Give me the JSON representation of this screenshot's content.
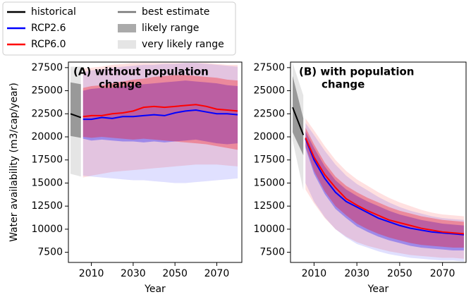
{
  "legend": {
    "series": [
      {
        "name": "historical",
        "color": "#000000"
      },
      {
        "name": "RCP2.6",
        "color": "#0000ff"
      },
      {
        "name": "RCP6.0",
        "color": "#ff0000"
      }
    ],
    "estimate": {
      "name": "best estimate",
      "color": "#777777"
    },
    "ranges": [
      {
        "name": "likely range",
        "color": "#aaaaaa"
      },
      {
        "name": "very likely range",
        "color": "#e5e5e5"
      }
    ]
  },
  "chart_data": [
    {
      "type": "line",
      "title_lines": [
        "(A) without population",
        "change"
      ],
      "xlabel": "Year",
      "ylabel": "Water availability (m3/cap/year)",
      "xlim": [
        1999,
        2082
      ],
      "ylim": [
        6400,
        28100
      ],
      "xticks": [
        2010,
        2030,
        2050,
        2070
      ],
      "yticks": [
        7500,
        10000,
        12500,
        15000,
        17500,
        20000,
        22500,
        25000,
        27500
      ],
      "series": [
        {
          "color": "#000000",
          "x": [
            2000,
            2005
          ],
          "values": [
            22500,
            22100
          ],
          "likely_lower": [
            20100,
            19900
          ],
          "likely_upper": [
            25900,
            25700
          ],
          "very_likely_lower": [
            16000,
            15700
          ],
          "very_likely_upper": [
            27600,
            27600
          ]
        },
        {
          "color": "#0000ff",
          "x": [
            2006,
            2010,
            2015,
            2020,
            2025,
            2030,
            2035,
            2040,
            2045,
            2050,
            2055,
            2060,
            2065,
            2070,
            2075,
            2080
          ],
          "values": [
            21900,
            21900,
            22100,
            22000,
            22200,
            22200,
            22300,
            22400,
            22300,
            22600,
            22800,
            22900,
            22700,
            22500,
            22500,
            22400
          ],
          "likely_lower": [
            19800,
            19600,
            19700,
            19600,
            19500,
            19500,
            19400,
            19500,
            19400,
            19500,
            19600,
            19700,
            19500,
            19300,
            19200,
            19300
          ],
          "likely_upper": [
            25000,
            25200,
            25300,
            25300,
            25500,
            25600,
            25700,
            25800,
            25900,
            26000,
            26100,
            26000,
            25900,
            25800,
            25600,
            25500
          ],
          "very_likely_lower": [
            15800,
            15700,
            15600,
            15500,
            15400,
            15300,
            15300,
            15200,
            15100,
            15000,
            15000,
            15100,
            15200,
            15300,
            15400,
            15500
          ],
          "very_likely_upper": [
            27000,
            27200,
            27300,
            27500,
            27600,
            27700,
            27800,
            27800,
            27900,
            27900,
            28000,
            28000,
            27900,
            27800,
            27700,
            27600
          ]
        },
        {
          "color": "#ff0000",
          "x": [
            2006,
            2010,
            2015,
            2020,
            2025,
            2030,
            2035,
            2040,
            2045,
            2050,
            2055,
            2060,
            2065,
            2070,
            2075,
            2080
          ],
          "values": [
            22200,
            22300,
            22300,
            22500,
            22600,
            22800,
            23200,
            23300,
            23200,
            23300,
            23400,
            23500,
            23300,
            23000,
            22900,
            22800
          ],
          "likely_lower": [
            20000,
            19900,
            20000,
            19900,
            19800,
            19700,
            19800,
            19700,
            19600,
            19500,
            19400,
            19300,
            19200,
            19000,
            18800,
            18600
          ],
          "likely_upper": [
            25300,
            25500,
            25600,
            25800,
            26000,
            26200,
            26300,
            26500,
            26600,
            26700,
            26700,
            26600,
            26500,
            26400,
            26200,
            26100
          ],
          "very_likely_lower": [
            15600,
            15800,
            16000,
            16200,
            16300,
            16400,
            16500,
            16600,
            16700,
            16800,
            16900,
            17000,
            17000,
            17000,
            16900,
            16800
          ],
          "very_likely_upper": [
            27400,
            27500,
            27600,
            27800,
            27900,
            28000,
            28000,
            28000,
            28000,
            28000,
            28000,
            28000,
            28000,
            27900,
            27800,
            27800
          ]
        }
      ]
    },
    {
      "type": "line",
      "title_lines": [
        "(B) with population",
        "change"
      ],
      "xlabel": "Year",
      "xlim": [
        1999,
        2081
      ],
      "ylim": [
        6400,
        28100
      ],
      "xticks": [
        2010,
        2030,
        2050,
        2070
      ],
      "yticks": [
        7500,
        10000,
        12500,
        15000,
        17500,
        20000,
        22500,
        25000,
        27500
      ],
      "series": [
        {
          "color": "#000000",
          "x": [
            2000,
            2005
          ],
          "values": [
            23200,
            20200
          ],
          "likely_lower": [
            20500,
            18000
          ],
          "likely_upper": [
            26600,
            22000
          ],
          "very_likely_lower": [
            19600,
            14200
          ],
          "very_likely_upper": [
            28000,
            24500
          ]
        },
        {
          "color": "#0000ff",
          "x": [
            2006,
            2010,
            2015,
            2020,
            2025,
            2030,
            2035,
            2040,
            2045,
            2050,
            2055,
            2060,
            2065,
            2070,
            2075,
            2080
          ],
          "values": [
            19800,
            17500,
            15500,
            14000,
            13000,
            12400,
            11800,
            11200,
            10800,
            10400,
            10100,
            9900,
            9700,
            9600,
            9500,
            9400
          ],
          "likely_lower": [
            18800,
            16000,
            13800,
            12200,
            11200,
            10300,
            9700,
            9200,
            8800,
            8500,
            8200,
            8000,
            7900,
            7800,
            7700,
            7700
          ],
          "likely_upper": [
            20600,
            18800,
            16800,
            15300,
            14300,
            13600,
            13000,
            12500,
            12000,
            11600,
            11300,
            11000,
            10800,
            10600,
            10500,
            10400
          ],
          "very_likely_lower": [
            15000,
            13000,
            11300,
            10000,
            9100,
            8400,
            8000,
            7600,
            7300,
            7100,
            6900,
            6800,
            6700,
            6600,
            6600,
            6500
          ],
          "very_likely_upper": [
            21500,
            20200,
            18500,
            17000,
            15800,
            14900,
            14200,
            13500,
            12900,
            12400,
            12000,
            11700,
            11400,
            11200,
            11100,
            11000
          ]
        },
        {
          "color": "#ff0000",
          "x": [
            2006,
            2010,
            2015,
            2020,
            2025,
            2030,
            2035,
            2040,
            2045,
            2050,
            2055,
            2060,
            2065,
            2070,
            2075,
            2080
          ],
          "values": [
            19900,
            17800,
            15900,
            14500,
            13300,
            12600,
            12000,
            11500,
            11000,
            10700,
            10400,
            10100,
            9900,
            9700,
            9600,
            9500
          ],
          "likely_lower": [
            19000,
            16300,
            14100,
            12500,
            11500,
            10600,
            10000,
            9500,
            9100,
            8800,
            8500,
            8300,
            8200,
            8100,
            8000,
            8000
          ],
          "likely_upper": [
            21000,
            19200,
            17200,
            15700,
            14700,
            14000,
            13400,
            12900,
            12400,
            12000,
            11700,
            11400,
            11200,
            11000,
            10900,
            10800
          ],
          "very_likely_lower": [
            14300,
            12800,
            11200,
            10000,
            9200,
            8600,
            8200,
            7900,
            7600,
            7400,
            7200,
            7100,
            7000,
            6900,
            6900,
            6800
          ],
          "very_likely_upper": [
            22000,
            20700,
            19000,
            17500,
            16300,
            15400,
            14700,
            14000,
            13400,
            12900,
            12500,
            12100,
            11800,
            11600,
            11500,
            11400
          ]
        }
      ]
    }
  ]
}
